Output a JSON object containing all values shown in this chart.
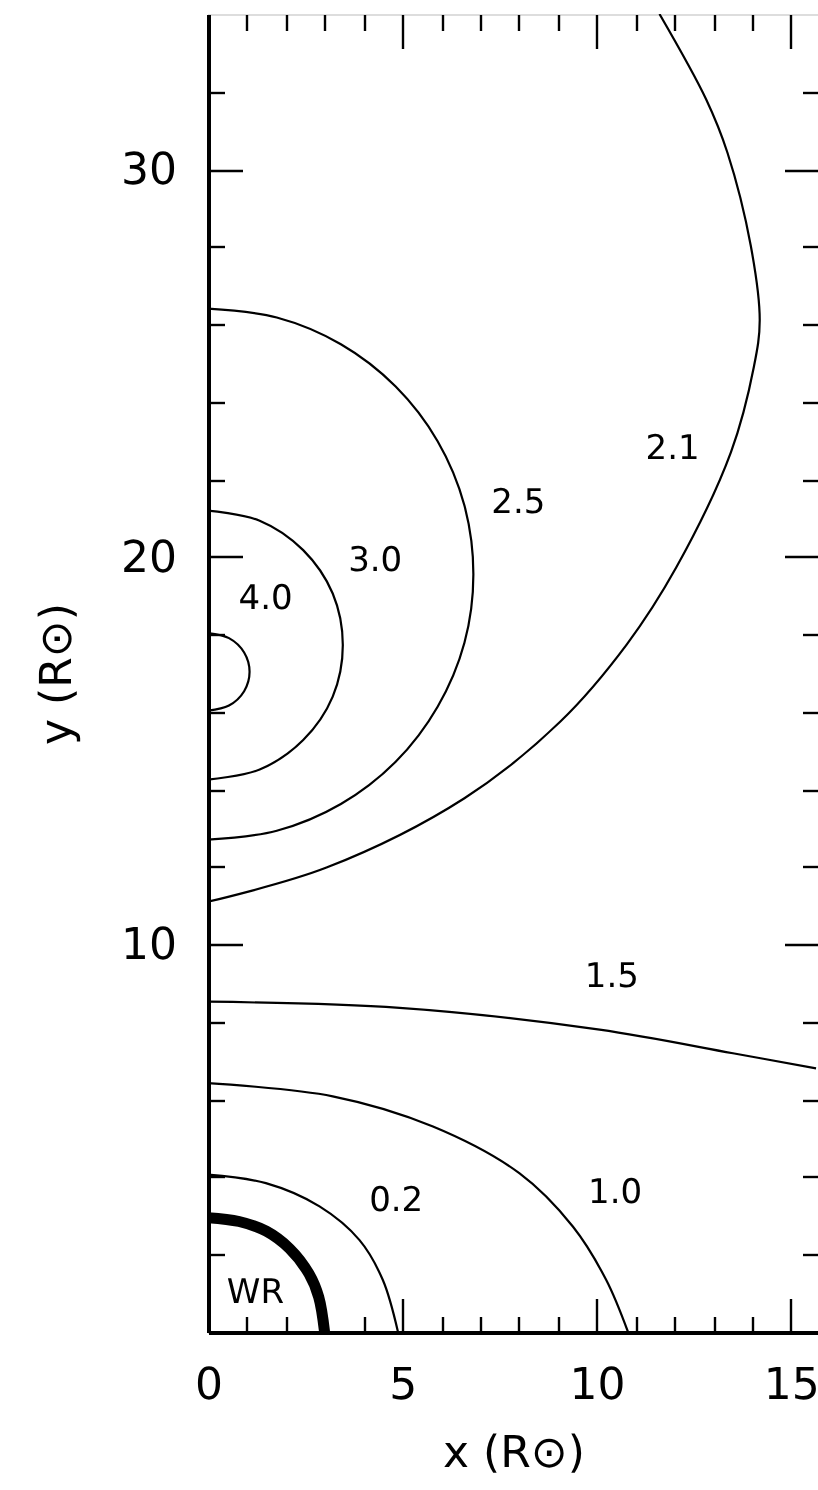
{
  "chart_data": {
    "type": "line",
    "xlabel": "x (R⊙)",
    "ylabel": "y (R⊙)",
    "xlim": [
      0,
      15.7
    ],
    "ylim": [
      0,
      34
    ],
    "xticks": [
      0,
      {
        "value": 1,
        "label": null
      },
      {
        "value": 2,
        "label": null
      },
      {
        "value": 3,
        "label": null
      },
      {
        "value": 4,
        "label": null
      },
      5,
      {
        "value": 6,
        "label": null
      },
      {
        "value": 7,
        "label": null
      },
      {
        "value": 8,
        "label": null
      },
      {
        "value": 9,
        "label": null
      },
      10,
      {
        "value": 11,
        "label": null
      },
      {
        "value": 12,
        "label": null
      },
      {
        "value": 13,
        "label": null
      },
      {
        "value": 14,
        "label": null
      },
      15
    ],
    "yticks": [
      {
        "value": 2,
        "label": null
      },
      {
        "value": 4,
        "label": null
      },
      {
        "value": 6,
        "label": null
      },
      {
        "value": 8,
        "label": null
      },
      10,
      {
        "value": 12,
        "label": null
      },
      {
        "value": 14,
        "label": null
      },
      {
        "value": 16,
        "label": null
      },
      {
        "value": 18,
        "label": null
      },
      20,
      {
        "value": 22,
        "label": null
      },
      {
        "value": 24,
        "label": null
      },
      {
        "value": 26,
        "label": null
      },
      {
        "value": 28,
        "label": null
      },
      30,
      {
        "value": 32,
        "label": null
      }
    ],
    "grid": false,
    "marker": "none",
    "line_style": "solid",
    "series": [
      {
        "color": "#000000",
        "x": [
          0,
          0.8,
          1.5,
          2.1,
          2.6,
          2.85,
          3.0
        ],
        "values": [
          2.95,
          2.85,
          2.6,
          2.15,
          1.5,
          0.9,
          0
        ]
      },
      {
        "color": "#000000",
        "x": [
          0,
          1.49,
          2.87,
          3.9,
          4.5,
          4.89
        ],
        "values": [
          4.06,
          3.84,
          3.24,
          2.37,
          1.34,
          0
        ]
      },
      {
        "color": "#000000",
        "x": [
          0,
          3.21,
          5.79,
          8.02,
          9.39,
          10.25,
          10.81
        ],
        "values": [
          6.42,
          6.08,
          5.3,
          4.09,
          2.72,
          1.34,
          0
        ]
      },
      {
        "color": "#000000",
        "x": [
          0,
          4.93,
          10.08,
          13.51,
          15.65
        ],
        "values": [
          8.52,
          8.36,
          7.8,
          7.19,
          6.8
        ]
      },
      {
        "color": "#000000",
        "x": [
          0,
          3.05,
          6.6,
          9.07,
          10.78,
          12.05,
          13.46,
          14.05,
          14.2,
          13.97,
          13.37,
          12.82,
          11.62
        ],
        "values": [
          11.1,
          11.98,
          13.77,
          15.75,
          17.74,
          19.72,
          22.7,
          24.9,
          26.1,
          28.02,
          30.42,
          31.8,
          34.0
        ]
      },
      {
        "color": "#000000",
        "x": [
          0,
          1.77,
          3.42,
          4.83,
          5.91,
          6.6,
          6.83,
          6.6,
          5.91,
          4.83,
          3.42,
          1.77,
          0
        ],
        "values": [
          26.4,
          26.17,
          25.48,
          24.39,
          22.98,
          21.32,
          19.55,
          17.78,
          16.13,
          14.71,
          13.62,
          12.93,
          12.7
        ]
      },
      {
        "color": "#000000",
        "x": [
          0,
          1.33,
          2.45,
          3.21,
          3.47,
          3.21,
          2.45,
          1.33,
          0
        ],
        "values": [
          21.19,
          20.93,
          20.17,
          19.05,
          17.72,
          16.39,
          15.27,
          14.51,
          14.25
        ]
      },
      {
        "color": "#000000",
        "x": [
          0,
          0.54,
          0.93,
          1.07,
          0.93,
          0.54,
          0
        ],
        "values": [
          18.03,
          17.9,
          17.53,
          17.03,
          16.53,
          16.16,
          16.03
        ]
      }
    ],
    "annotations": [
      {
        "text": "2.1",
        "x": 13.22,
        "y": 22.2
      },
      {
        "text": "2.5",
        "x": 6.63,
        "y": 21.1
      },
      {
        "text": "3.0",
        "x": 3.07,
        "y": 19.26
      },
      {
        "text": "4.0",
        "x": 0.64,
        "y": 17.8
      },
      {
        "text": "1.5",
        "x": 10.19,
        "y": 7.78
      },
      {
        "text": "0.2",
        "x": 3.81,
        "y": 2.45
      },
      {
        "text": "1.0",
        "x": 9.39,
        "y": 2.72
      },
      {
        "text": "WR",
        "x": 2.27,
        "y": 1.93
      }
    ]
  }
}
